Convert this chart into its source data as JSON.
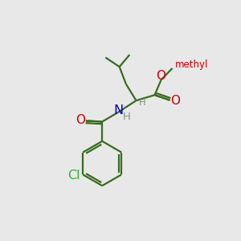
{
  "bg_color": "#e8e8e8",
  "bond_color": "#3a6b20",
  "bond_width": 1.6,
  "atom_colors": {
    "O": "#cc0000",
    "N": "#0000cc",
    "Cl": "#2ab52a",
    "H": "#7a9a7a",
    "C": "#3a6b20",
    "methyl": "#cc0000"
  },
  "font_size": 10.5
}
